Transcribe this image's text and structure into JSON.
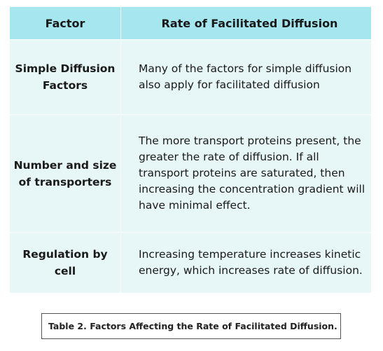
{
  "table": {
    "header": {
      "factor": "Factor",
      "rate": "Rate of Facilitated Diffusion"
    },
    "rows": [
      {
        "factor": "Simple Diffusion Factors",
        "rate": "Many of the factors for simple diffusion also apply for facilitated diffusion"
      },
      {
        "factor": "Number and size of transporters",
        "rate": "The more transport proteins present, the greater the rate of diffusion. If all transport proteins are saturated, then increasing the concentration gradient will have minimal effect."
      },
      {
        "factor": "Regulation by cell",
        "rate": "Increasing temperature increases kinetic energy, which increases rate of diffusion."
      }
    ]
  },
  "caption": "Table 2. Factors Affecting the Rate of Facilitated Diffusion.",
  "colors": {
    "header_bg": "#a6e6ee",
    "row_bg": "#e7f6f7"
  }
}
